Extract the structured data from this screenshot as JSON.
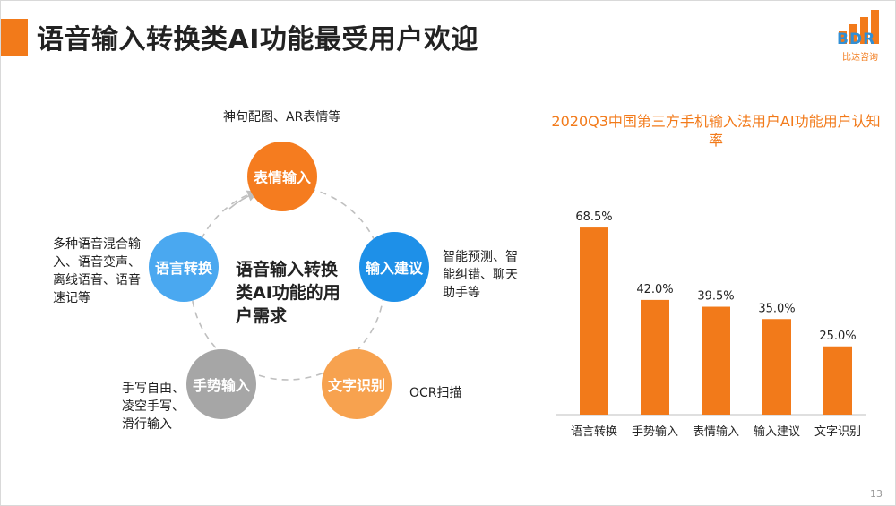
{
  "slide": {
    "title": "语音输入转换类AI功能最受用户欢迎",
    "page_number": "13",
    "logo_text": "BDR",
    "logo_subtext": "比达咨询",
    "accent_color": "#f27a1a"
  },
  "diagram": {
    "center_label": "语音输入转换类AI功能的用户需求",
    "nodes": [
      {
        "label": "表情输入",
        "color": "#f57c1f",
        "desc": "神句配图、AR表情等"
      },
      {
        "label": "输入建议",
        "color": "#1e90e8",
        "desc": "智能预测、智能纠错、聊天助手等"
      },
      {
        "label": "文字识别",
        "color": "#f7a24f",
        "desc": "OCR扫描"
      },
      {
        "label": "手势输入",
        "color": "#a6a6a6",
        "desc": "手写自由、凌空手写、滑行输入"
      },
      {
        "label": "语言转换",
        "color": "#4aa8f0",
        "desc": "多种语音混合输入、语音变声、离线语音、语音速记等"
      }
    ]
  },
  "chart_data": {
    "type": "bar",
    "title": "2020Q3中国第三方手机输入法用户AI功能用户认知率",
    "categories": [
      "语言转换",
      "手势输入",
      "表情输入",
      "输入建议",
      "文字识别"
    ],
    "values": [
      68.5,
      42.0,
      39.5,
      35.0,
      25.0
    ],
    "value_labels": [
      "68.5%",
      "42.0%",
      "39.5%",
      "35.0%",
      "25.0%"
    ],
    "bar_color": "#f27a1a",
    "ylim": [
      0,
      80
    ],
    "grid": false
  }
}
